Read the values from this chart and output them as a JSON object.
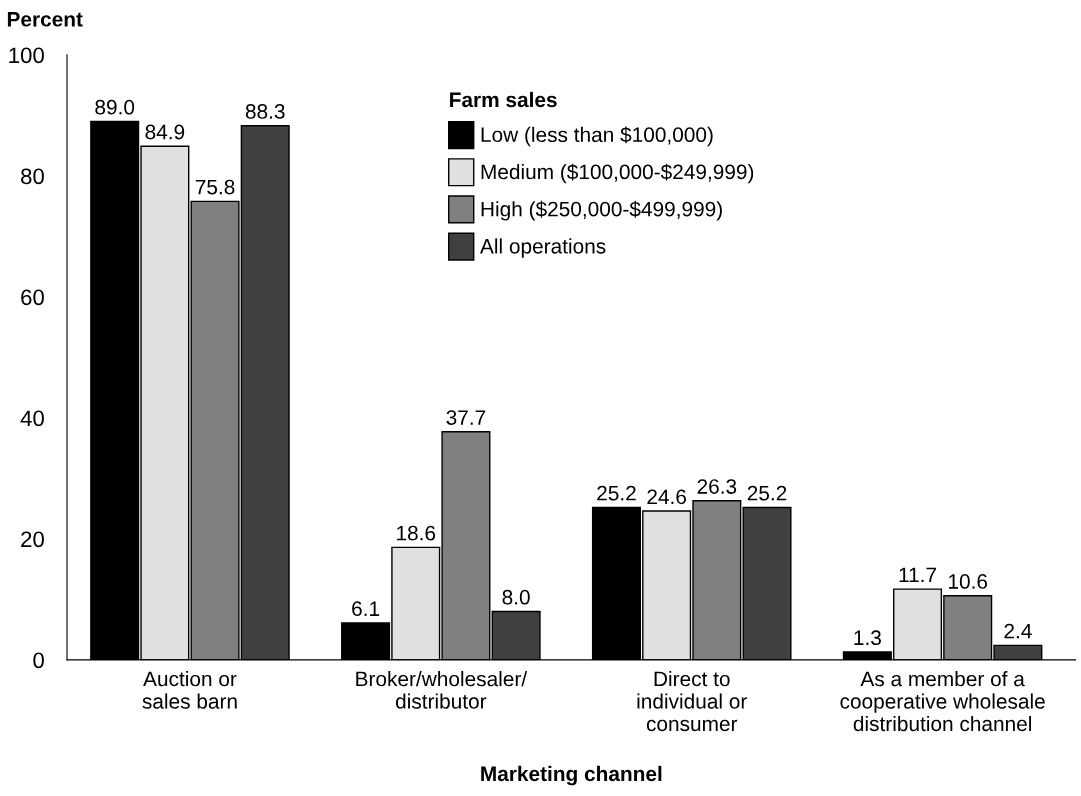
{
  "chart_data": {
    "type": "bar",
    "ylabel": "Percent",
    "xlabel": "Marketing channel",
    "legend_title": "Farm sales",
    "categories": [
      "Auction or\nsales barn",
      "Broker/wholesaler/\ndistributor",
      "Direct to\nindividual or\nconsumer",
      "As a member of a\ncooperative wholesale\ndistribution channel"
    ],
    "series": [
      {
        "name": "Low (less than $100,000)",
        "color": "#000000",
        "values": [
          89.0,
          6.1,
          25.2,
          1.3
        ],
        "value_labels": [
          "89.0",
          "6.1",
          "25.2",
          "1.3"
        ]
      },
      {
        "name": "Medium ($100,000-$249,999)",
        "color": "#e0e0e0",
        "values": [
          84.9,
          18.6,
          24.6,
          11.7
        ],
        "value_labels": [
          "84.9",
          "18.6",
          "24.6",
          "11.7"
        ]
      },
      {
        "name": "High ($250,000-$499,999)",
        "color": "#808080",
        "values": [
          75.8,
          37.7,
          26.3,
          10.6
        ],
        "value_labels": [
          "75.8",
          "37.7",
          "26.3",
          "10.6"
        ]
      },
      {
        "name": "All operations",
        "color": "#404040",
        "values": [
          88.3,
          8,
          25.2,
          2.4
        ],
        "value_labels": [
          "88.3",
          "8.0",
          "25.2",
          "2.4"
        ]
      }
    ],
    "ylim": [
      0,
      100
    ],
    "yticks": [
      0,
      20,
      40,
      60,
      80,
      100
    ],
    "grid": false,
    "legend": "top"
  }
}
